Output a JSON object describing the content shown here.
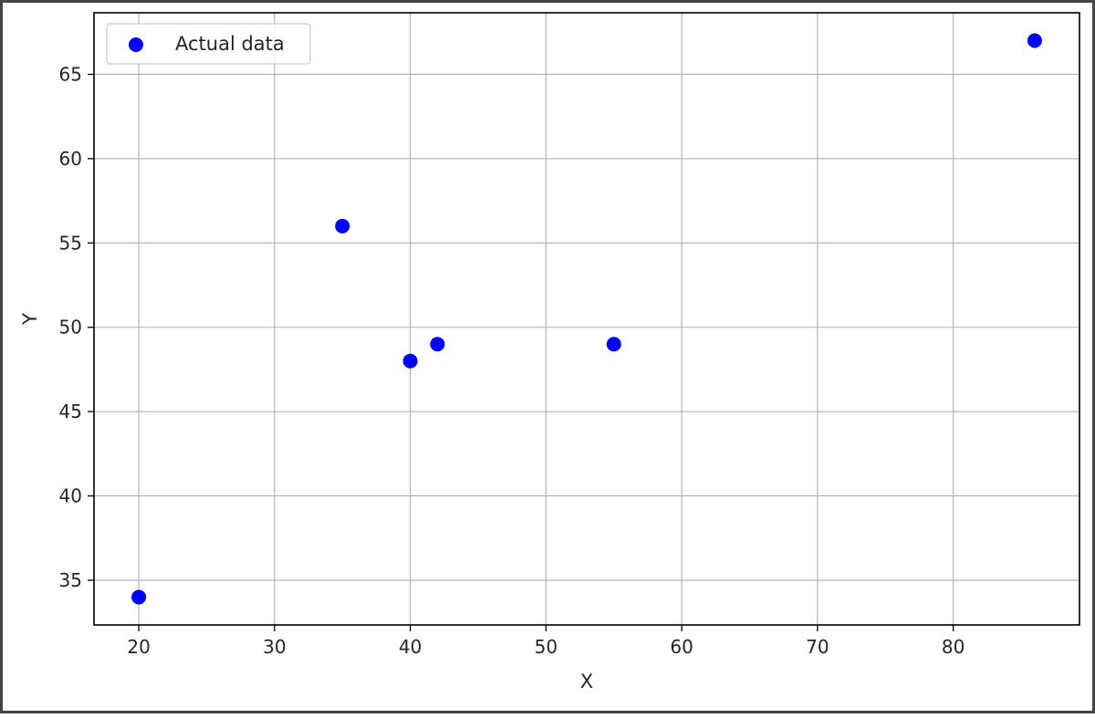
{
  "chart_data": {
    "type": "scatter",
    "title": "",
    "xlabel": "X",
    "ylabel": "Y",
    "xlim": [
      16.7,
      89.3
    ],
    "ylim": [
      32.35,
      68.65
    ],
    "xticks": [
      20,
      30,
      40,
      50,
      60,
      70,
      80
    ],
    "yticks": [
      35,
      40,
      45,
      50,
      55,
      60,
      65
    ],
    "grid": true,
    "legend": {
      "placement": "top-left",
      "entries": [
        "Actual data"
      ]
    },
    "series": [
      {
        "name": "Actual data",
        "color": "#0000ff",
        "marker": "circle",
        "x": [
          20,
          35,
          40,
          42,
          55,
          86
        ],
        "y": [
          34,
          56,
          48,
          49,
          49,
          67
        ]
      }
    ]
  }
}
